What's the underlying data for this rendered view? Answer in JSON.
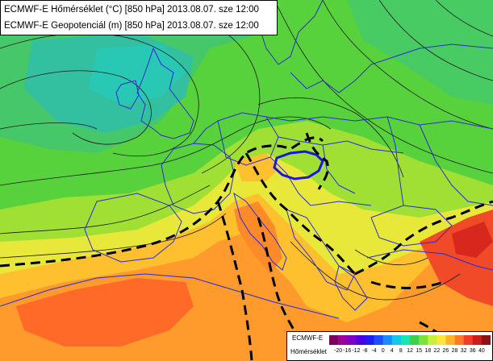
{
  "titles": {
    "line1": "ECMWF-E Hőmérséklet (°C) [850 hPa] 2013.08.07. sze 12:00",
    "line2": "ECMWF-E Geopotenciál (m) [850 hPa] 2013.08.07. sze 12:00"
  },
  "legend": {
    "model": "ECMWF-E",
    "variable": "Hőmérséklet",
    "ticks": [
      "-20",
      "-16",
      "-12",
      "-8",
      "-4",
      "0",
      "4",
      "8",
      "12",
      "15",
      "18",
      "22",
      "26",
      "28",
      "32",
      "36",
      "40"
    ],
    "colors": [
      "#7a005c",
      "#9a0099",
      "#7c00c8",
      "#4b00e0",
      "#1e1ef0",
      "#1a4fff",
      "#1a8cff",
      "#14c8e6",
      "#14e6b4",
      "#3ccf50",
      "#7ee03c",
      "#c8f03c",
      "#ffe63c",
      "#ffb428",
      "#ff7a28",
      "#f03c28",
      "#c81e1e",
      "#8c1414"
    ]
  },
  "map": {
    "highlight_country_color": "#1a14e6",
    "border_color": "#2a2ad6",
    "isotherm_color": "#000000"
  }
}
